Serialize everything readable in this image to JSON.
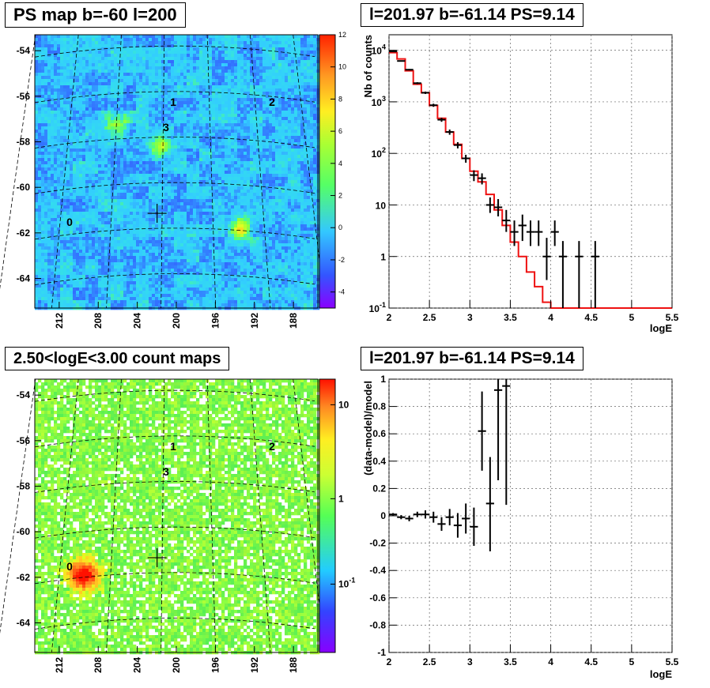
{
  "panels": {
    "ps_map_title": "PS map b=-60 l=200",
    "spectrum_title": "l=201.97 b=-61.14 PS=9.14",
    "count_map_title": "2.50<logE<3.00 count maps",
    "residual_title": "l=201.97 b=-61.14 PS=9.14"
  },
  "colors": {
    "model_line": "#ee1111",
    "data_marker": "#000000",
    "grid": "#666666"
  },
  "chart_data": [
    {
      "type": "heatmap",
      "title": "PS map b=-60 l=200",
      "x_tick_labels": [
        "212",
        "208",
        "204",
        "200",
        "196",
        "192",
        "188"
      ],
      "y_tick_labels": [
        "-54",
        "-56",
        "-58",
        "-60",
        "-62",
        "-64"
      ],
      "color_scale": {
        "min": -5,
        "max": 12,
        "ticks": [
          "-4",
          "-2",
          "0",
          "2",
          "4",
          "6",
          "8",
          "10",
          "12"
        ]
      },
      "sources": [
        {
          "label": "0"
        },
        {
          "label": "1"
        },
        {
          "label": "2"
        },
        {
          "label": "3"
        }
      ],
      "hot_spots": [
        {
          "l": 206,
          "b": -57.2,
          "value": 5
        },
        {
          "l": 201.5,
          "b": -58.2,
          "value": 7
        },
        {
          "l": 193.5,
          "b": -61.8,
          "value": 8
        }
      ],
      "marker": {
        "type": "cross",
        "l": 201.97,
        "b": -61.14
      }
    },
    {
      "type": "line",
      "title": "l=201.97 b=-61.14 PS=9.14",
      "xlabel": "logE",
      "ylabel": "Nb of counts",
      "xlim": [
        2,
        5.5
      ],
      "ylim": [
        0.1,
        20000
      ],
      "yscale": "log",
      "grid": true,
      "x_tick_labels": [
        "2",
        "2.5",
        "3",
        "3.5",
        "4",
        "4.5",
        "5",
        "5.5"
      ],
      "y_tick_labels": [
        "10^-1",
        "1",
        "10",
        "10^2",
        "10^3",
        "10^4"
      ],
      "model_edges": [
        2,
        2.1,
        2.2,
        2.3,
        2.4,
        2.5,
        2.6,
        2.7,
        2.8,
        2.9,
        3.0,
        3.1,
        3.2,
        3.3,
        3.4,
        3.5,
        3.6,
        3.7,
        3.8,
        3.9,
        4.0,
        4.1,
        4.2,
        4.3,
        4.4,
        4.5,
        4.6,
        4.7,
        4.8,
        4.9,
        5.0,
        5.1,
        5.2,
        5.3,
        5.4,
        5.5
      ],
      "model_values": [
        9000,
        6800,
        4000,
        2200,
        1500,
        850,
        480,
        260,
        150,
        80,
        45,
        28,
        16,
        8,
        4,
        1.9,
        1,
        0.5,
        0.26,
        0.13,
        0.1,
        0.1,
        0.1,
        0.1,
        0.1,
        0.1,
        0.1,
        0.1,
        0.1,
        0.1,
        0.1,
        0.1,
        0.1,
        0.1,
        0.1
      ],
      "points": [
        {
          "x": 2.05,
          "y": 9500,
          "ylo": 9300,
          "yhi": 9700
        },
        {
          "x": 2.15,
          "y": 6200,
          "ylo": 6050,
          "yhi": 6350
        },
        {
          "x": 2.25,
          "y": 4200,
          "ylo": 4070,
          "yhi": 4330
        },
        {
          "x": 2.35,
          "y": 2300,
          "ylo": 2200,
          "yhi": 2400
        },
        {
          "x": 2.45,
          "y": 1500,
          "ylo": 1420,
          "yhi": 1580
        },
        {
          "x": 2.55,
          "y": 860,
          "ylo": 800,
          "yhi": 920
        },
        {
          "x": 2.65,
          "y": 450,
          "ylo": 410,
          "yhi": 490
        },
        {
          "x": 2.75,
          "y": 260,
          "ylo": 230,
          "yhi": 290
        },
        {
          "x": 2.85,
          "y": 145,
          "ylo": 125,
          "yhi": 165
        },
        {
          "x": 2.95,
          "y": 80,
          "ylo": 66,
          "yhi": 94
        },
        {
          "x": 3.05,
          "y": 38,
          "ylo": 29,
          "yhi": 47
        },
        {
          "x": 3.15,
          "y": 33,
          "ylo": 25,
          "yhi": 41
        },
        {
          "x": 3.25,
          "y": 10,
          "ylo": 7,
          "yhi": 14
        },
        {
          "x": 3.35,
          "y": 9,
          "ylo": 6,
          "yhi": 13
        },
        {
          "x": 3.45,
          "y": 5,
          "ylo": 3,
          "yhi": 8
        },
        {
          "x": 3.55,
          "y": 3,
          "ylo": 1.6,
          "yhi": 5
        },
        {
          "x": 3.65,
          "y": 4,
          "ylo": 2,
          "yhi": 6.5
        },
        {
          "x": 3.75,
          "y": 3,
          "ylo": 1.6,
          "yhi": 5
        },
        {
          "x": 3.85,
          "y": 3,
          "ylo": 1.6,
          "yhi": 5
        },
        {
          "x": 3.95,
          "y": 1,
          "ylo": 0.35,
          "yhi": 2.3
        },
        {
          "x": 4.05,
          "y": 3,
          "ylo": 1.6,
          "yhi": 5
        },
        {
          "x": 4.15,
          "y": 1,
          "ylo": 0.1,
          "yhi": 2
        },
        {
          "x": 4.35,
          "y": 1,
          "ylo": 0.1,
          "yhi": 2
        },
        {
          "x": 4.55,
          "y": 1,
          "ylo": 0.1,
          "yhi": 2
        }
      ]
    },
    {
      "type": "heatmap",
      "title": "2.50<logE<3.00 count maps",
      "x_tick_labels": [
        "212",
        "208",
        "204",
        "200",
        "196",
        "192",
        "188"
      ],
      "y_tick_labels": [
        "-54",
        "-56",
        "-58",
        "-60",
        "-62",
        "-64"
      ],
      "color_scale": {
        "scale": "log",
        "ticks": [
          "10",
          "1",
          "10^-1"
        ]
      },
      "sources": [
        {
          "label": "0"
        },
        {
          "label": "1"
        },
        {
          "label": "2"
        },
        {
          "label": "3"
        }
      ],
      "hot_spots": [
        {
          "l": 209.5,
          "b": -61.9,
          "value": 12
        }
      ],
      "marker": {
        "type": "cross",
        "l": 201.97,
        "b": -61.14
      }
    },
    {
      "type": "scatter",
      "title": "l=201.97 b=-61.14 PS=9.14",
      "xlabel": "logE",
      "ylabel": "(data-model)/model",
      "xlim": [
        2,
        5.5
      ],
      "ylim": [
        -1,
        1
      ],
      "grid": true,
      "x_tick_labels": [
        "2",
        "2.5",
        "3",
        "3.5",
        "4",
        "4.5",
        "5",
        "5.5"
      ],
      "y_tick_labels": [
        "-1",
        "-0.8",
        "-0.6",
        "-0.4",
        "-0.2",
        "0",
        "0.2",
        "0.4",
        "0.6",
        "0.8",
        "1"
      ],
      "points": [
        {
          "x": 2.05,
          "y": 0.01,
          "ylo": 0.0,
          "yhi": 0.02
        },
        {
          "x": 2.15,
          "y": -0.01,
          "ylo": -0.025,
          "yhi": 0.005
        },
        {
          "x": 2.25,
          "y": -0.02,
          "ylo": -0.04,
          "yhi": 0.0
        },
        {
          "x": 2.35,
          "y": 0.01,
          "ylo": -0.01,
          "yhi": 0.03
        },
        {
          "x": 2.45,
          "y": 0.01,
          "ylo": -0.02,
          "yhi": 0.04
        },
        {
          "x": 2.55,
          "y": -0.01,
          "ylo": -0.05,
          "yhi": 0.03
        },
        {
          "x": 2.65,
          "y": -0.06,
          "ylo": -0.11,
          "yhi": -0.01
        },
        {
          "x": 2.75,
          "y": -0.01,
          "ylo": -0.07,
          "yhi": 0.05
        },
        {
          "x": 2.85,
          "y": -0.07,
          "ylo": -0.16,
          "yhi": 0.02
        },
        {
          "x": 2.95,
          "y": -0.02,
          "ylo": -0.13,
          "yhi": 0.09
        },
        {
          "x": 3.05,
          "y": -0.08,
          "ylo": -0.22,
          "yhi": 0.06
        },
        {
          "x": 3.15,
          "y": 0.62,
          "ylo": 0.33,
          "yhi": 0.91
        },
        {
          "x": 3.25,
          "y": 0.09,
          "ylo": -0.26,
          "yhi": 0.43
        },
        {
          "x": 3.35,
          "y": 0.92,
          "ylo": 0.26,
          "yhi": 1.0
        },
        {
          "x": 3.45,
          "y": 0.95,
          "ylo": 0.08,
          "yhi": 1.0
        }
      ]
    }
  ]
}
